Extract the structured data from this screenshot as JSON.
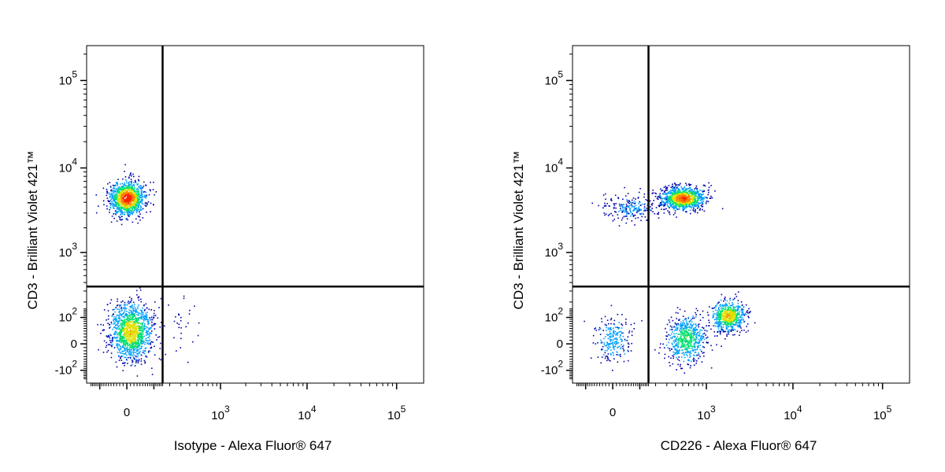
{
  "chart_data": [
    {
      "type": "scatter",
      "subtype": "flow-cytometry-density-dot-plot",
      "xlabel": "Isotype - Alexa Fluor® 647",
      "ylabel": "CD3 - Brilliant Violet 421™",
      "x_scale": "biexponential",
      "y_scale": "biexponential",
      "x_ticks": [
        {
          "base": "0",
          "exp": ""
        },
        {
          "base": "10",
          "exp": "3"
        },
        {
          "base": "10",
          "exp": "4"
        },
        {
          "base": "10",
          "exp": "5"
        }
      ],
      "y_ticks": [
        {
          "base": "-10",
          "exp": "2"
        },
        {
          "base": "0",
          "exp": ""
        },
        {
          "base": "10",
          "exp": "2"
        },
        {
          "base": "10",
          "exp": "3"
        },
        {
          "base": "10",
          "exp": "4"
        },
        {
          "base": "10",
          "exp": "5"
        }
      ],
      "gate": {
        "x": 150,
        "y": 350
      },
      "grid": false,
      "colormap": [
        "#0000aa",
        "#00a0ff",
        "#00e070",
        "#e0e000",
        "#ff8000",
        "#ff2000"
      ],
      "populations": [
        {
          "x": 0,
          "y": 4500,
          "count": 1100,
          "spread_x": 0.45,
          "spread_y": 0.45,
          "peak_density": 1.0
        },
        {
          "x": 10,
          "y": 40,
          "count": 1250,
          "spread_x": 0.55,
          "spread_y": 0.75,
          "peak_density": 0.65
        },
        {
          "x": 300,
          "y": 40,
          "count": 30,
          "spread_x": 0.4,
          "spread_y": 0.8,
          "peak_density": 0.0
        }
      ]
    },
    {
      "type": "scatter",
      "subtype": "flow-cytometry-density-dot-plot",
      "xlabel": "CD226 - Alexa Fluor® 647",
      "ylabel": "CD3 - Brilliant Violet 421™",
      "x_scale": "biexponential",
      "y_scale": "biexponential",
      "x_ticks": [
        {
          "base": "0",
          "exp": ""
        },
        {
          "base": "10",
          "exp": "3"
        },
        {
          "base": "10",
          "exp": "4"
        },
        {
          "base": "10",
          "exp": "5"
        }
      ],
      "y_ticks": [
        {
          "base": "-10",
          "exp": "2"
        },
        {
          "base": "0",
          "exp": ""
        },
        {
          "base": "10",
          "exp": "2"
        },
        {
          "base": "10",
          "exp": "3"
        },
        {
          "base": "10",
          "exp": "4"
        },
        {
          "base": "10",
          "exp": "5"
        }
      ],
      "gate": {
        "x": 150,
        "y": 350
      },
      "grid": false,
      "colormap": [
        "#0000aa",
        "#00a0ff",
        "#00e070",
        "#e0e000",
        "#ff8000",
        "#ff2000"
      ],
      "populations": [
        {
          "x": 500,
          "y": 4500,
          "count": 1050,
          "spread_x": 0.55,
          "spread_y": 0.3,
          "peak_density": 0.9
        },
        {
          "x": 60,
          "y": 3500,
          "count": 220,
          "spread_x": 0.7,
          "spread_y": 0.35,
          "peak_density": 0.1
        },
        {
          "x": 1800,
          "y": 110,
          "count": 650,
          "spread_x": 0.45,
          "spread_y": 0.4,
          "peak_density": 0.7
        },
        {
          "x": 550,
          "y": 15,
          "count": 600,
          "spread_x": 0.5,
          "spread_y": 0.6,
          "peak_density": 0.45
        },
        {
          "x": 0,
          "y": 10,
          "count": 230,
          "spread_x": 0.45,
          "spread_y": 0.6,
          "peak_density": 0.2
        }
      ]
    }
  ]
}
